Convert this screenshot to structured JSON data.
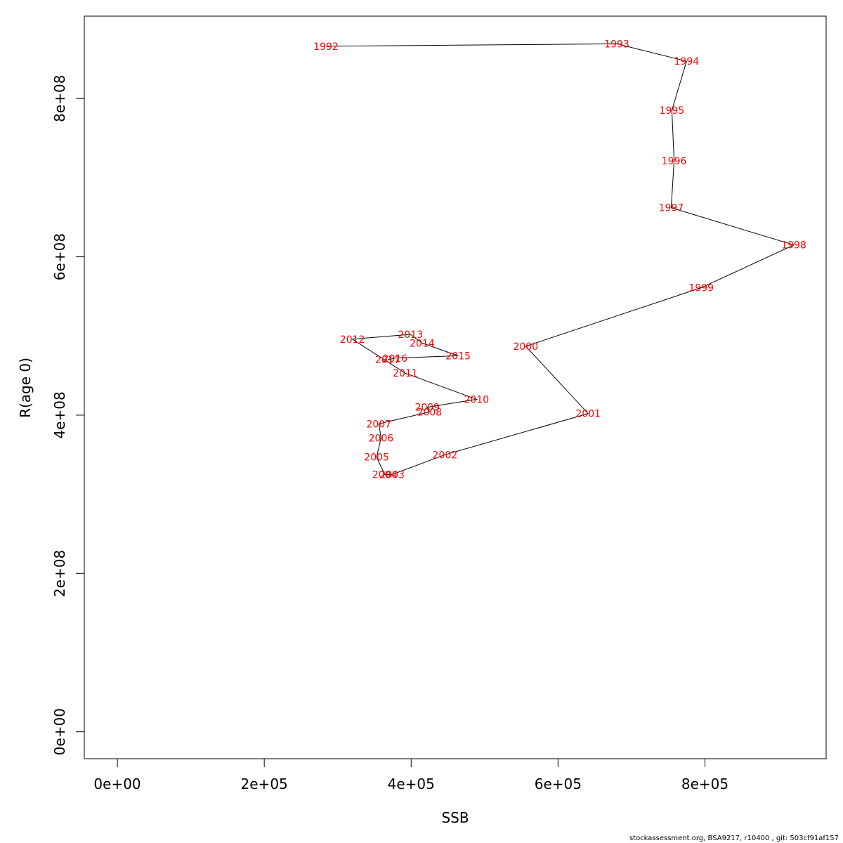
{
  "chart_data": {
    "type": "line",
    "xlabel": "SSB",
    "ylabel": "R(age 0)",
    "xlim": [
      -45000,
      965000
    ],
    "ylim": [
      -34000000,
      904000000
    ],
    "x_ticks": [
      {
        "value": 0,
        "label": "0e+00"
      },
      {
        "value": 200000,
        "label": "2e+05"
      },
      {
        "value": 400000,
        "label": "4e+05"
      },
      {
        "value": 600000,
        "label": "6e+05"
      },
      {
        "value": 800000,
        "label": "8e+05"
      }
    ],
    "y_ticks": [
      {
        "value": 0,
        "label": "0e+00"
      },
      {
        "value": 200000000,
        "label": "2e+08"
      },
      {
        "value": 400000000,
        "label": "4e+08"
      },
      {
        "value": 600000000,
        "label": "6e+08"
      },
      {
        "value": 800000000,
        "label": "8e+08"
      }
    ],
    "grid": false,
    "line_color": "#000000",
    "label_color": "#ff0000",
    "points": [
      {
        "label": "1992",
        "x": 284000,
        "y": 866000000
      },
      {
        "label": "1993",
        "x": 680000,
        "y": 869000000
      },
      {
        "label": "1994",
        "x": 775000,
        "y": 847000000
      },
      {
        "label": "1995",
        "x": 755000,
        "y": 785000000
      },
      {
        "label": "1996",
        "x": 758000,
        "y": 721000000
      },
      {
        "label": "1997",
        "x": 754000,
        "y": 662000000
      },
      {
        "label": "1998",
        "x": 921000,
        "y": 615000000
      },
      {
        "label": "1999",
        "x": 795000,
        "y": 561000000
      },
      {
        "label": "2000",
        "x": 556000,
        "y": 487000000
      },
      {
        "label": "2001",
        "x": 641000,
        "y": 402000000
      },
      {
        "label": "2002",
        "x": 446000,
        "y": 350000000
      },
      {
        "label": "2003",
        "x": 374000,
        "y": 325000000
      },
      {
        "label": "2004",
        "x": 364000,
        "y": 325000000
      },
      {
        "label": "2005",
        "x": 353000,
        "y": 347000000
      },
      {
        "label": "2006",
        "x": 359000,
        "y": 371000000
      },
      {
        "label": "2007",
        "x": 356000,
        "y": 389000000
      },
      {
        "label": "2008",
        "x": 425000,
        "y": 404000000
      },
      {
        "label": "2009",
        "x": 422000,
        "y": 410000000
      },
      {
        "label": "2010",
        "x": 489000,
        "y": 420000000
      },
      {
        "label": "2011",
        "x": 392000,
        "y": 453000000
      },
      {
        "label": "2012",
        "x": 320000,
        "y": 496000000
      },
      {
        "label": "2013",
        "x": 399000,
        "y": 502000000
      },
      {
        "label": "2014",
        "x": 415000,
        "y": 491000000
      },
      {
        "label": "2015",
        "x": 464000,
        "y": 475000000
      },
      {
        "label": "2016",
        "x": 378000,
        "y": 472000000
      },
      {
        "label": "2017",
        "x": 368000,
        "y": 470000000
      }
    ]
  },
  "footer_text": "stockassessment.org, BSA9217, r10400 , git: 503cf91af157"
}
